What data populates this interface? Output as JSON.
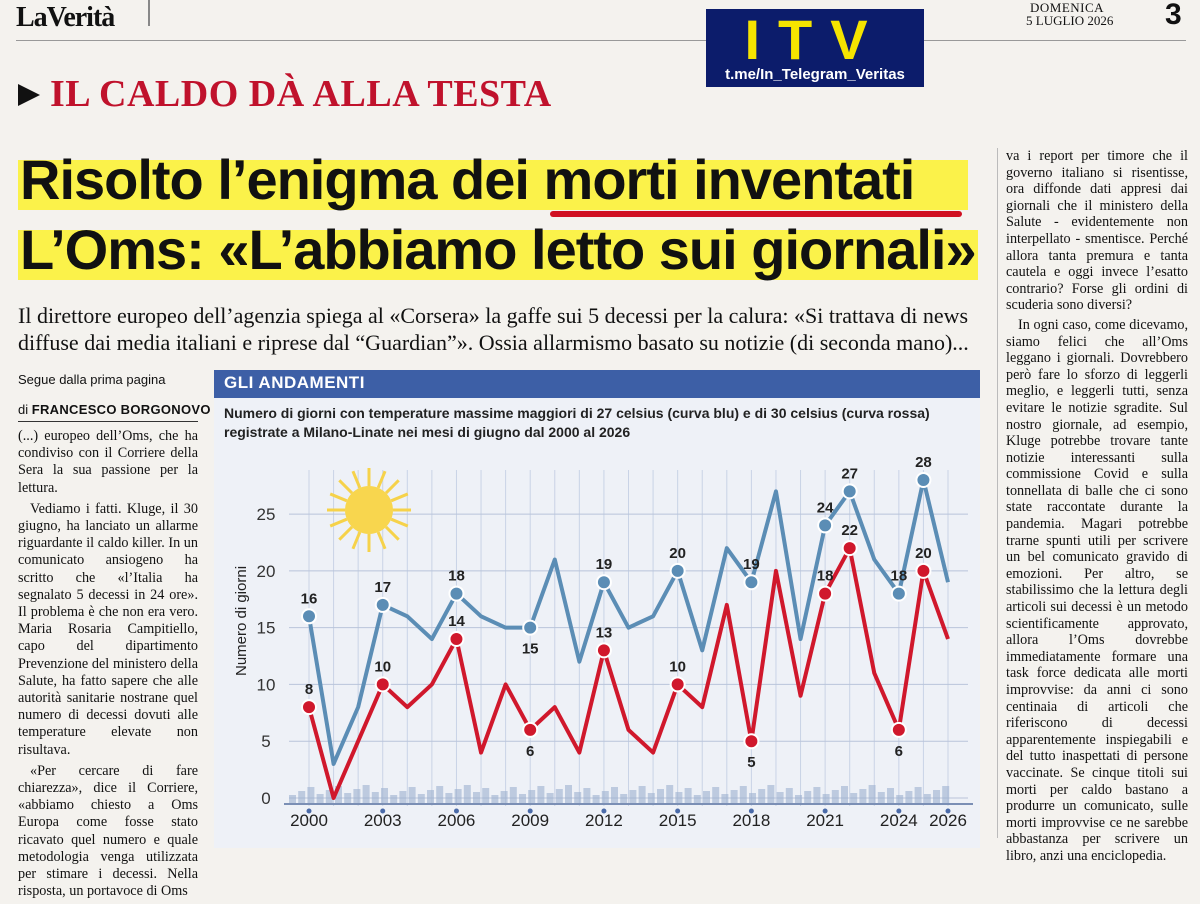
{
  "masthead": {
    "title": "LaVerità",
    "date_day": "DOMENICA",
    "date_full": "5 LUGLIO 2026",
    "page_number": "3"
  },
  "logo": {
    "letters": "ITV",
    "link": "t.me/In_Telegram_Veritas"
  },
  "article": {
    "kicker": "IL CALDO DÀ ALLA TESTA",
    "headline_1": "Risolto l’enigma dei morti inventati",
    "headline_2": "L’Oms: «L’abbiamo letto sui giornali»",
    "subheadline": "Il direttore europeo dell’agenzia spiega al «Corsera» la gaffe sui 5 decessi per la calura: «Si trattava di news diffuse dai media italiani e riprese dal “Guardian”». Ossia allarmismo basato su notizie (di seconda mano)...",
    "segue": "Segue dalla prima pagina",
    "byline_prefix": "di ",
    "byline_name": "FRANCESCO BORGONOVO",
    "left_paragraphs": [
      "(...) europeo dell’Oms, che ha condiviso con il Corriere della Sera la sua passione per la lettura.",
      "Vediamo i fatti. Kluge, il 30 giugno, ha lanciato un allarme riguardante il caldo killer. In un comunicato ansiogeno ha scritto che «l’Italia ha segnalato 5 decessi in 24 ore». Il problema è che non era vero. Maria Rosaria Campitiello, capo del dipartimento Prevenzione del ministero della Salute, ha fatto sapere che alle autorità sanitarie nostrane quel numero di decessi dovuti alle temperature elevate non risultava.",
      "«Per cercare di fare chiarezza», dice il Corriere, «abbiamo chiesto a Oms Europa come fosse stato ricavato quel numero e quale metodologia venga utilizzata per stimare i decessi. Nella risposta, un portavoce di Oms"
    ],
    "right_paragraphs": [
      "va i report per timore che il governo italiano si risentisse, ora diffonde dati appresi dai giornali che il ministero della Salute - evidentemente non interpellato - smentisce. Perché allora tanta premura e tanta cautela e oggi invece l’esatto contrario? Forse gli ordini di scuderia sono diversi?",
      "In ogni caso, come dicevamo, siamo felici che all’Oms leggano i giornali. Dovrebbero però fare lo sforzo di leggerli meglio, e leggerli tutti, senza evitare le notizie sgradite. Sul nostro giornale, ad esempio, Kluge potrebbe trovare tante notizie interessanti sulla commissione Covid e sulla tonnellata di balle che ci sono state raccontate durante la pandemia. Magari potrebbe trarne spunti utili per scrivere un bel comunicato gravido di emozioni. Per altro, se stabilissimo che la lettura degli articoli sui decessi è un metodo scientificamente approvato, allora l’Oms dovrebbe immediatamente formare una task force dedicata alle morti improvvise: da anni ci sono centinaia di articoli che riferiscono di decessi apparentemente inspiegabili e del tutto inaspettati di persone vaccinate. Se cinque titoli sui morti per caldo bastano a produrre un comunicato, sulle morti improvvise ce ne sarebbe abbastanza per scrivere un libro, anzi una enciclopedia."
    ]
  },
  "colors": {
    "accent_red": "#c0122c",
    "highlight_yellow": "#fbf24a",
    "chart_header": "#3d5fa6",
    "blue_curve": "#5b8db5",
    "red_curve": "#d0182c",
    "logo_bg": "#0c1c6b",
    "logo_yellow": "#f5e400"
  },
  "chart_data": {
    "type": "line",
    "header": "GLI ANDAMENTI",
    "title": "Numero di giorni con temperature massime maggiori di 27 celsius (curva blu) e di 30 celsius (curva rossa) registrate a Milano-Linate nei mesi di giugno dal 2000 al 2026",
    "xlabel": "",
    "ylabel": "Numero di giorni",
    "x": [
      2000,
      2001,
      2002,
      2003,
      2004,
      2005,
      2006,
      2007,
      2008,
      2009,
      2010,
      2011,
      2012,
      2013,
      2014,
      2015,
      2016,
      2017,
      2018,
      2019,
      2020,
      2021,
      2022,
      2023,
      2024,
      2025,
      2026
    ],
    "x_ticks": [
      2000,
      2003,
      2006,
      2009,
      2012,
      2015,
      2018,
      2021,
      2024,
      2026
    ],
    "y_ticks": [
      0,
      5,
      10,
      15,
      20,
      25
    ],
    "ylim": [
      0,
      28
    ],
    "series": [
      {
        "name": "curva blu",
        "color": "#5b8db5",
        "values": [
          16,
          3,
          8,
          17,
          16,
          14,
          18,
          16,
          15,
          15,
          21,
          12,
          19,
          15,
          16,
          20,
          13,
          22,
          19,
          27,
          14,
          24,
          27,
          21,
          18,
          28,
          19
        ]
      },
      {
        "name": "curva rossa",
        "color": "#d0182c",
        "values": [
          8,
          0,
          5,
          10,
          8,
          10,
          14,
          4,
          10,
          6,
          8,
          4,
          13,
          6,
          4,
          10,
          8,
          17,
          5,
          20,
          9,
          18,
          22,
          11,
          6,
          20,
          14
        ]
      }
    ],
    "labeled_points": {
      "blue": [
        [
          2000,
          16
        ],
        [
          2003,
          17
        ],
        [
          2006,
          18
        ],
        [
          2009,
          15
        ],
        [
          2012,
          19
        ],
        [
          2015,
          20
        ],
        [
          2018,
          19
        ],
        [
          2021,
          24
        ],
        [
          2022,
          27
        ],
        [
          2024,
          18
        ],
        [
          2025,
          28
        ]
      ],
      "red": [
        [
          2000,
          8
        ],
        [
          2003,
          10
        ],
        [
          2006,
          14
        ],
        [
          2009,
          6
        ],
        [
          2012,
          13
        ],
        [
          2015,
          10
        ],
        [
          2018,
          5
        ],
        [
          2021,
          18
        ],
        [
          2022,
          22
        ],
        [
          2024,
          6
        ],
        [
          2025,
          20
        ]
      ]
    },
    "grid": true
  }
}
